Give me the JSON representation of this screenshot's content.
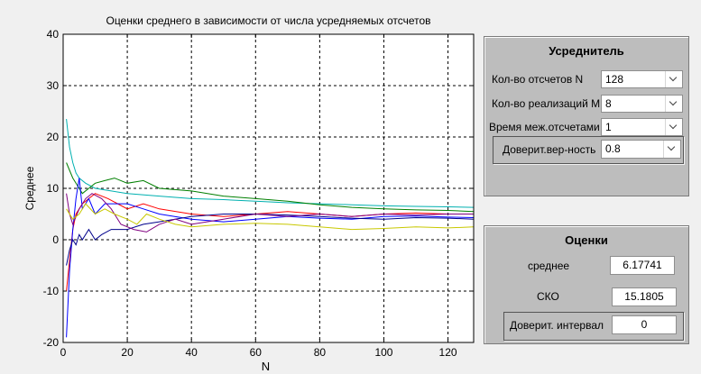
{
  "chart_data": {
    "type": "line",
    "title": "Оценки среднего в зависимости от числа усредняемых отсчетов",
    "xlabel": "N",
    "ylabel": "Среднее",
    "xlim": [
      0,
      128
    ],
    "ylim": [
      -20,
      40
    ],
    "xticks": [
      0,
      20,
      40,
      60,
      80,
      100,
      120
    ],
    "yticks": [
      -20,
      -10,
      0,
      10,
      20,
      30,
      40
    ],
    "grid": true,
    "series": [
      {
        "color": "#00b0b0",
        "x": [
          1,
          2,
          3,
          4,
          5,
          7,
          10,
          15,
          20,
          30,
          40,
          50,
          60,
          70,
          80,
          90,
          100,
          110,
          120,
          128
        ],
        "y": [
          23.5,
          18,
          15,
          13,
          12,
          11,
          10,
          9.5,
          9,
          8.5,
          8,
          7.8,
          7.5,
          7.2,
          7,
          6.8,
          6.6,
          6.5,
          6.4,
          6.3
        ]
      },
      {
        "color": "#007f00",
        "x": [
          1,
          2,
          3,
          4,
          6,
          8,
          10,
          13,
          16,
          20,
          25,
          30,
          40,
          50,
          60,
          70,
          80,
          90,
          100,
          110,
          120,
          128
        ],
        "y": [
          15,
          13.5,
          12,
          11,
          9,
          10,
          11,
          11.5,
          12,
          11,
          11.5,
          10,
          9.5,
          8.5,
          8,
          7.5,
          6.8,
          6.3,
          6,
          5.8,
          5.7,
          5.5
        ]
      },
      {
        "color": "#ff0000",
        "x": [
          1,
          2,
          3,
          4,
          5,
          6,
          8,
          10,
          14,
          20,
          25,
          30,
          40,
          50,
          60,
          70,
          80,
          90,
          100,
          110,
          120,
          128
        ],
        "y": [
          -10,
          -4,
          2,
          5,
          6,
          7,
          8,
          9,
          8,
          6,
          7,
          6,
          5,
          4.5,
          5,
          5.5,
          5,
          4.5,
          5,
          5.2,
          5,
          5
        ]
      },
      {
        "color": "#0000ff",
        "x": [
          1,
          2,
          3,
          4,
          5,
          6,
          8,
          10,
          13,
          16,
          20,
          25,
          30,
          40,
          50,
          60,
          70,
          80,
          90,
          100,
          110,
          120,
          128
        ],
        "y": [
          -19,
          -6,
          2,
          8,
          12,
          6,
          8,
          5,
          7,
          7,
          7,
          6,
          5,
          4,
          3.5,
          4,
          4.5,
          4.2,
          4,
          4.5,
          4.6,
          4.4,
          4.3
        ]
      },
      {
        "color": "#00008b",
        "x": [
          1,
          2,
          3,
          4,
          5,
          6,
          8,
          10,
          12,
          15,
          20,
          25,
          30,
          40,
          50,
          60,
          70,
          80,
          90,
          100,
          110,
          120,
          128
        ],
        "y": [
          -5,
          -2,
          0,
          -1,
          1,
          0,
          2,
          0,
          1,
          2,
          2,
          3,
          3.5,
          4.5,
          5,
          5,
          4.8,
          4.5,
          4.2,
          4,
          4.3,
          4.2,
          4
        ]
      },
      {
        "color": "#800080",
        "x": [
          1,
          2,
          3,
          5,
          7,
          9,
          12,
          15,
          18,
          22,
          26,
          30,
          35,
          40,
          50,
          60,
          70,
          80,
          90,
          100,
          110,
          120,
          128
        ],
        "y": [
          9,
          5,
          3,
          6,
          8,
          9,
          8,
          6,
          3,
          2,
          1.5,
          3,
          4,
          3,
          4,
          5,
          4.5,
          5,
          4.5,
          5,
          4.8,
          5,
          5
        ]
      },
      {
        "color": "#c8c800",
        "x": [
          1,
          3,
          5,
          7,
          10,
          13,
          16,
          20,
          23,
          26,
          30,
          35,
          40,
          50,
          60,
          70,
          80,
          90,
          100,
          110,
          120,
          128
        ],
        "y": [
          6,
          4,
          5,
          7,
          5,
          6,
          5,
          4,
          3,
          5,
          4,
          3,
          2.5,
          3,
          3.2,
          3,
          2.5,
          2,
          2.2,
          2.5,
          2.3,
          2.5
        ]
      }
    ]
  },
  "averager_panel": {
    "title": "Усреднитель",
    "fields": [
      {
        "label": "Кол-во отсчетов N",
        "value": "128"
      },
      {
        "label": "Кол-во реализаций M",
        "value": "8"
      },
      {
        "label": "Время меж.отсчетами",
        "value": "1"
      },
      {
        "label": "Доверит.вер-ность",
        "value": "0.8"
      }
    ]
  },
  "estimates_panel": {
    "title": "Оценки",
    "mean_label": "среднее",
    "mean_value": "6.17741",
    "sko_label": "СКО",
    "sko_value": "15.1805",
    "ci_label": "Доверит. интервал",
    "ci_value": "0"
  }
}
